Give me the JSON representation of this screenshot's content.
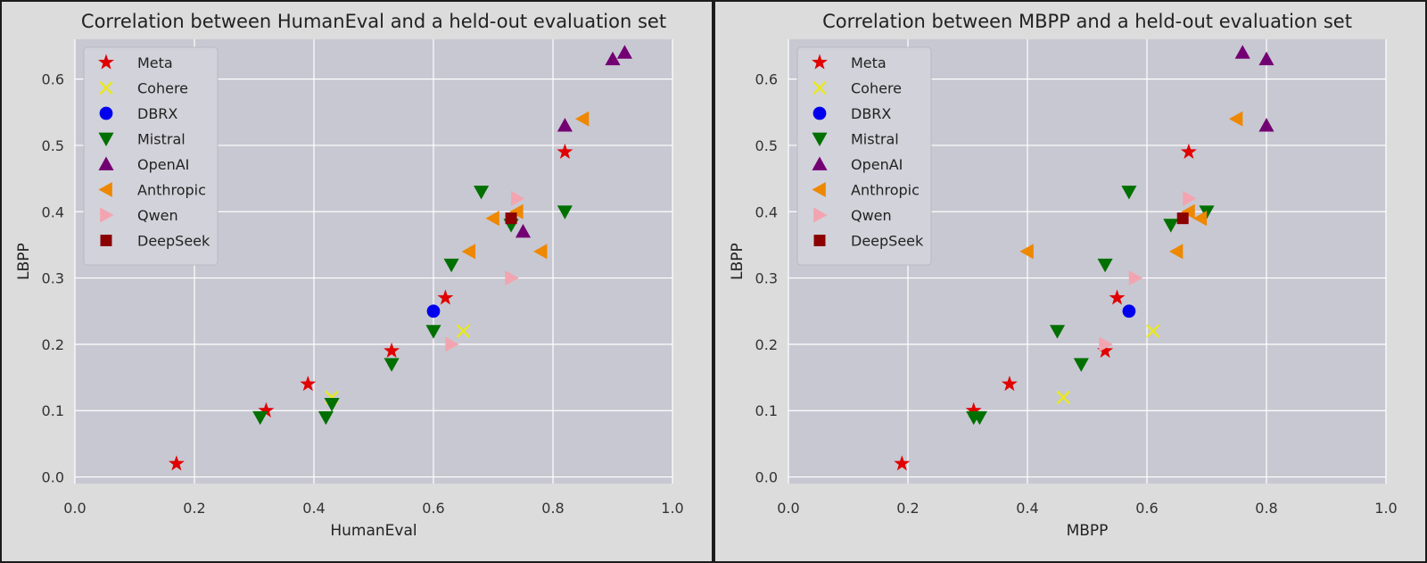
{
  "figure": {
    "legend_order": [
      "Meta",
      "Cohere",
      "DBRX",
      "Mistral",
      "OpenAI",
      "Anthropic",
      "Qwen",
      "DeepSeek"
    ]
  },
  "series_style": {
    "Meta": {
      "marker": "star",
      "color": "#e00000"
    },
    "Cohere": {
      "marker": "x",
      "color": "#e8e820"
    },
    "DBRX": {
      "marker": "circle",
      "color": "#0000ee"
    },
    "Mistral": {
      "marker": "triangle-down",
      "color": "#007000"
    },
    "OpenAI": {
      "marker": "triangle-up",
      "color": "#730073"
    },
    "Anthropic": {
      "marker": "triangle-left",
      "color": "#ee8800"
    },
    "Qwen": {
      "marker": "triangle-right",
      "color": "#f2a5b0"
    },
    "DeepSeek": {
      "marker": "square",
      "color": "#8b0000"
    }
  },
  "chart_data": [
    {
      "type": "scatter",
      "title": "Correlation between HumanEval and a held-out evaluation set",
      "xlabel": "HumanEval",
      "ylabel": "LBPP",
      "xlim": [
        0.0,
        1.0
      ],
      "ylim": [
        -0.01,
        0.66
      ],
      "xticks": [
        0.0,
        0.2,
        0.4,
        0.6,
        0.8,
        1.0
      ],
      "yticks": [
        0.0,
        0.1,
        0.2,
        0.3,
        0.4,
        0.5,
        0.6
      ],
      "xtick_labels": [
        "0.0",
        "0.2",
        "0.4",
        "0.6",
        "0.8",
        "1.0"
      ],
      "ytick_labels": [
        "0.0",
        "0.1",
        "0.2",
        "0.3",
        "0.4",
        "0.5",
        "0.6"
      ],
      "grid": true,
      "legend": "top-left",
      "series": [
        {
          "name": "Meta",
          "points": [
            [
              0.17,
              0.02
            ],
            [
              0.32,
              0.1
            ],
            [
              0.39,
              0.14
            ],
            [
              0.53,
              0.19
            ],
            [
              0.62,
              0.27
            ],
            [
              0.82,
              0.49
            ]
          ]
        },
        {
          "name": "Cohere",
          "points": [
            [
              0.43,
              0.12
            ],
            [
              0.65,
              0.22
            ]
          ]
        },
        {
          "name": "DBRX",
          "points": [
            [
              0.6,
              0.25
            ]
          ]
        },
        {
          "name": "Mistral",
          "points": [
            [
              0.31,
              0.09
            ],
            [
              0.42,
              0.09
            ],
            [
              0.43,
              0.11
            ],
            [
              0.53,
              0.17
            ],
            [
              0.6,
              0.22
            ],
            [
              0.63,
              0.32
            ],
            [
              0.68,
              0.43
            ],
            [
              0.73,
              0.38
            ],
            [
              0.82,
              0.4
            ]
          ]
        },
        {
          "name": "OpenAI",
          "points": [
            [
              0.75,
              0.37
            ],
            [
              0.82,
              0.53
            ],
            [
              0.9,
              0.63
            ],
            [
              0.92,
              0.64
            ]
          ]
        },
        {
          "name": "Anthropic",
          "points": [
            [
              0.66,
              0.34
            ],
            [
              0.7,
              0.39
            ],
            [
              0.74,
              0.4
            ],
            [
              0.78,
              0.34
            ],
            [
              0.85,
              0.54
            ]
          ]
        },
        {
          "name": "Qwen",
          "points": [
            [
              0.63,
              0.2
            ],
            [
              0.73,
              0.3
            ],
            [
              0.74,
              0.42
            ]
          ]
        },
        {
          "name": "DeepSeek",
          "points": [
            [
              0.73,
              0.39
            ]
          ]
        }
      ]
    },
    {
      "type": "scatter",
      "title": "Correlation between MBPP and a held-out evaluation set",
      "xlabel": "MBPP",
      "ylabel": "LBPP",
      "xlim": [
        0.0,
        1.0
      ],
      "ylim": [
        -0.01,
        0.66
      ],
      "xticks": [
        0.0,
        0.2,
        0.4,
        0.6,
        0.8,
        1.0
      ],
      "yticks": [
        0.0,
        0.1,
        0.2,
        0.3,
        0.4,
        0.5,
        0.6
      ],
      "xtick_labels": [
        "0.0",
        "0.2",
        "0.4",
        "0.6",
        "0.8",
        "1.0"
      ],
      "ytick_labels": [
        "0.0",
        "0.1",
        "0.2",
        "0.3",
        "0.4",
        "0.5",
        "0.6"
      ],
      "grid": true,
      "legend": "top-left",
      "series": [
        {
          "name": "Meta",
          "points": [
            [
              0.19,
              0.02
            ],
            [
              0.31,
              0.1
            ],
            [
              0.37,
              0.14
            ],
            [
              0.53,
              0.19
            ],
            [
              0.55,
              0.27
            ],
            [
              0.67,
              0.49
            ]
          ]
        },
        {
          "name": "Cohere",
          "points": [
            [
              0.46,
              0.12
            ],
            [
              0.61,
              0.22
            ]
          ]
        },
        {
          "name": "DBRX",
          "points": [
            [
              0.57,
              0.25
            ]
          ]
        },
        {
          "name": "Mistral",
          "points": [
            [
              0.31,
              0.09
            ],
            [
              0.32,
              0.09
            ],
            [
              0.45,
              0.22
            ],
            [
              0.49,
              0.17
            ],
            [
              0.53,
              0.32
            ],
            [
              0.57,
              0.43
            ],
            [
              0.64,
              0.38
            ],
            [
              0.7,
              0.4
            ]
          ]
        },
        {
          "name": "OpenAI",
          "points": [
            [
              0.76,
              0.64
            ],
            [
              0.8,
              0.63
            ],
            [
              0.8,
              0.53
            ]
          ]
        },
        {
          "name": "Anthropic",
          "points": [
            [
              0.4,
              0.34
            ],
            [
              0.65,
              0.34
            ],
            [
              0.67,
              0.4
            ],
            [
              0.69,
              0.39
            ],
            [
              0.75,
              0.54
            ]
          ]
        },
        {
          "name": "Qwen",
          "points": [
            [
              0.53,
              0.2
            ],
            [
              0.58,
              0.3
            ],
            [
              0.67,
              0.42
            ]
          ]
        },
        {
          "name": "DeepSeek",
          "points": [
            [
              0.66,
              0.39
            ]
          ]
        }
      ]
    }
  ]
}
